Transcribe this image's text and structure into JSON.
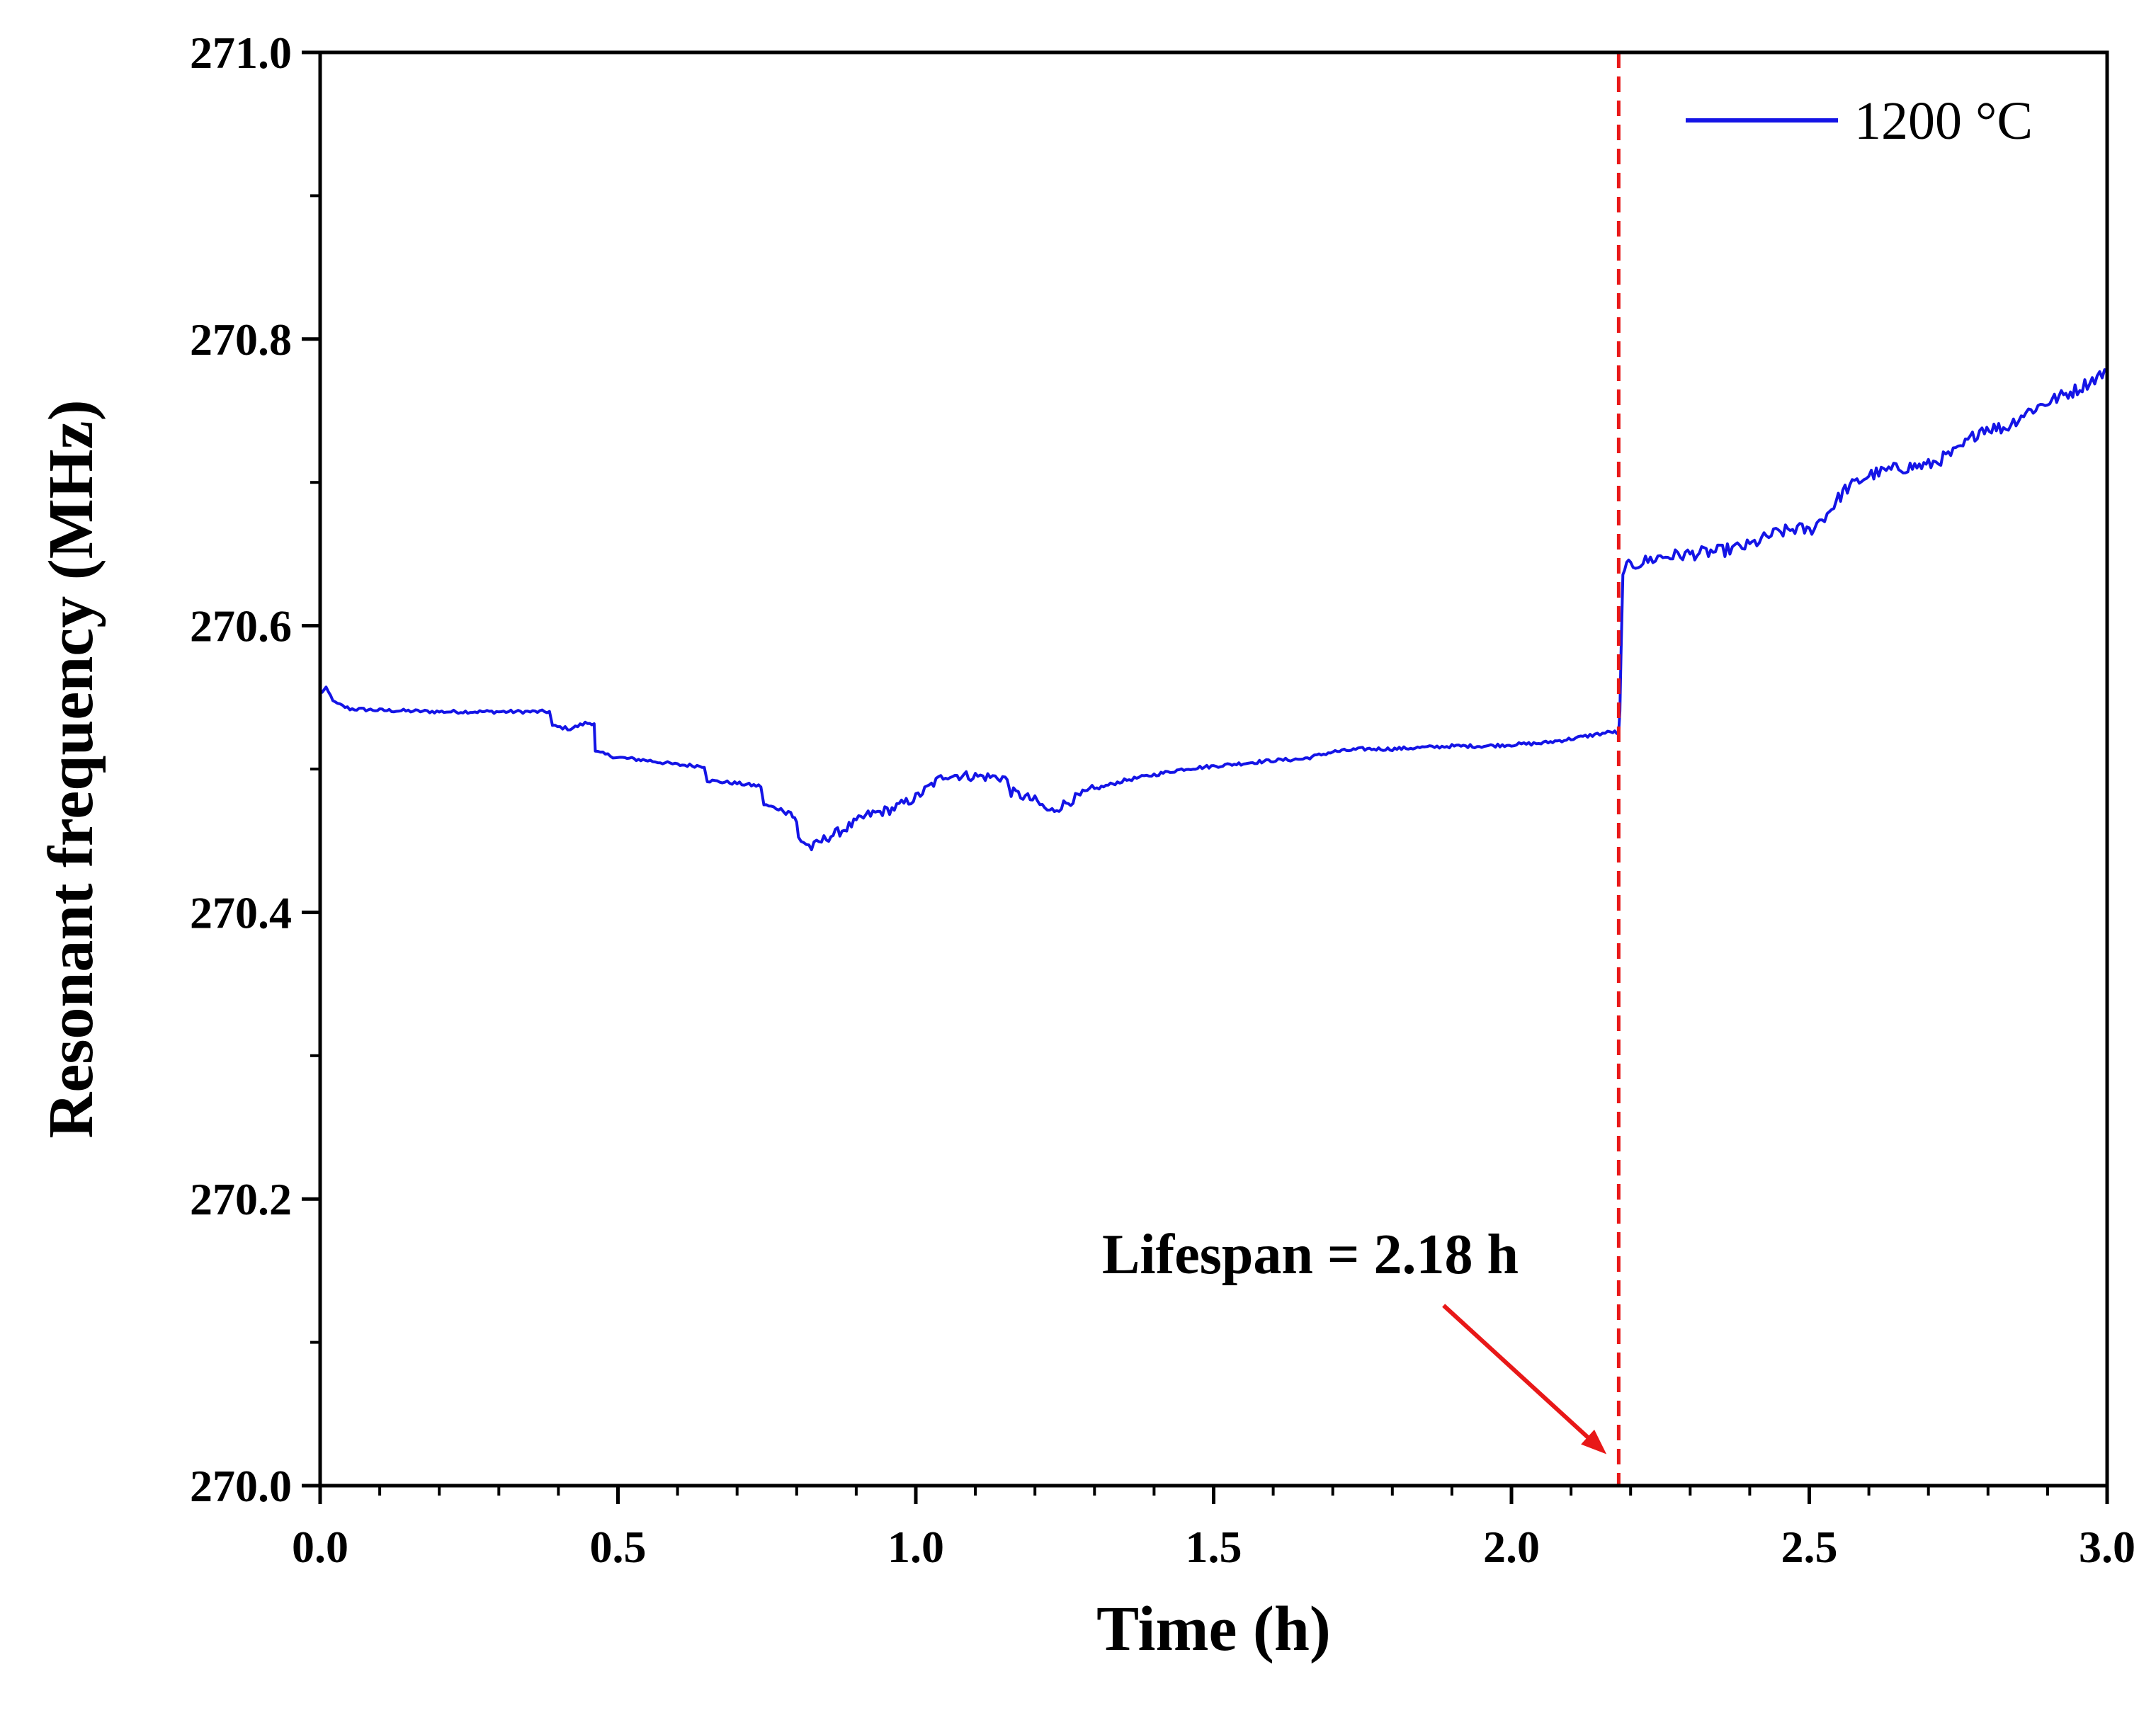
{
  "chart_data": {
    "type": "line",
    "title": "",
    "xlabel": "Time (h)",
    "ylabel": "Resonant frequency (MHz)",
    "xlim": [
      0,
      3.0
    ],
    "ylim": [
      270.0,
      271.0
    ],
    "x_ticks": [
      "0.0",
      "0.5",
      "1.0",
      "1.5",
      "2.0",
      "2.5",
      "3.0"
    ],
    "y_ticks": [
      "270.0",
      "270.2",
      "270.4",
      "270.6",
      "270.8",
      "271.0"
    ],
    "grid": false,
    "legend_position": "top-right",
    "series": [
      {
        "name": "1200 °C",
        "color": "#1414e6",
        "points": [
          [
            0.0,
            270.553
          ],
          [
            0.01,
            270.556
          ],
          [
            0.025,
            270.546
          ],
          [
            0.05,
            270.542
          ],
          [
            0.1,
            270.541
          ],
          [
            0.2,
            270.54
          ],
          [
            0.3,
            270.54
          ],
          [
            0.385,
            270.54
          ],
          [
            0.39,
            270.53
          ],
          [
            0.42,
            270.528
          ],
          [
            0.445,
            270.532
          ],
          [
            0.46,
            270.532
          ],
          [
            0.462,
            270.512
          ],
          [
            0.5,
            270.508
          ],
          [
            0.55,
            270.506
          ],
          [
            0.6,
            270.503
          ],
          [
            0.645,
            270.502
          ],
          [
            0.65,
            270.492
          ],
          [
            0.7,
            270.49
          ],
          [
            0.74,
            270.488
          ],
          [
            0.745,
            270.475
          ],
          [
            0.79,
            270.47
          ],
          [
            0.8,
            270.462
          ],
          [
            0.803,
            270.452
          ],
          [
            0.825,
            270.445
          ],
          [
            0.85,
            270.452
          ],
          [
            0.88,
            270.458
          ],
          [
            0.92,
            270.468
          ],
          [
            0.96,
            270.472
          ],
          [
            1.0,
            270.48
          ],
          [
            1.03,
            270.49
          ],
          [
            1.05,
            270.496
          ],
          [
            1.1,
            270.495
          ],
          [
            1.15,
            270.494
          ],
          [
            1.16,
            270.484
          ],
          [
            1.2,
            270.478
          ],
          [
            1.225,
            270.47
          ],
          [
            1.26,
            270.478
          ],
          [
            1.3,
            270.486
          ],
          [
            1.35,
            270.492
          ],
          [
            1.4,
            270.496
          ],
          [
            1.45,
            270.5
          ],
          [
            1.5,
            270.502
          ],
          [
            1.55,
            270.504
          ],
          [
            1.6,
            270.506
          ],
          [
            1.65,
            270.507
          ],
          [
            1.7,
            270.512
          ],
          [
            1.75,
            270.514
          ],
          [
            1.8,
            270.514
          ],
          [
            1.85,
            270.515
          ],
          [
            1.9,
            270.516
          ],
          [
            1.95,
            270.516
          ],
          [
            2.0,
            270.517
          ],
          [
            2.05,
            270.518
          ],
          [
            2.1,
            270.521
          ],
          [
            2.14,
            270.524
          ],
          [
            2.17,
            270.526
          ],
          [
            2.18,
            270.525
          ],
          [
            2.182,
            270.54
          ],
          [
            2.184,
            270.58
          ],
          [
            2.187,
            270.635
          ],
          [
            2.19,
            270.64
          ],
          [
            2.2,
            270.642
          ],
          [
            2.25,
            270.648
          ],
          [
            2.3,
            270.65
          ],
          [
            2.35,
            270.652
          ],
          [
            2.4,
            270.656
          ],
          [
            2.44,
            270.664
          ],
          [
            2.48,
            270.668
          ],
          [
            2.5,
            270.666
          ],
          [
            2.53,
            270.678
          ],
          [
            2.56,
            270.695
          ],
          [
            2.6,
            270.705
          ],
          [
            2.65,
            270.71
          ],
          [
            2.7,
            270.712
          ],
          [
            2.75,
            270.722
          ],
          [
            2.79,
            270.738
          ],
          [
            2.83,
            270.738
          ],
          [
            2.86,
            270.748
          ],
          [
            2.9,
            270.756
          ],
          [
            2.95,
            270.765
          ],
          [
            3.0,
            270.778
          ]
        ]
      }
    ],
    "reference_lines": [
      {
        "axis": "x",
        "value": 2.18,
        "style": "dashed",
        "color": "#e81818"
      }
    ],
    "annotations": [
      {
        "text": "Lifespan = 2.18 h",
        "arrow_to": [
          2.15,
          270.02
        ],
        "color": "#e81818"
      }
    ]
  }
}
